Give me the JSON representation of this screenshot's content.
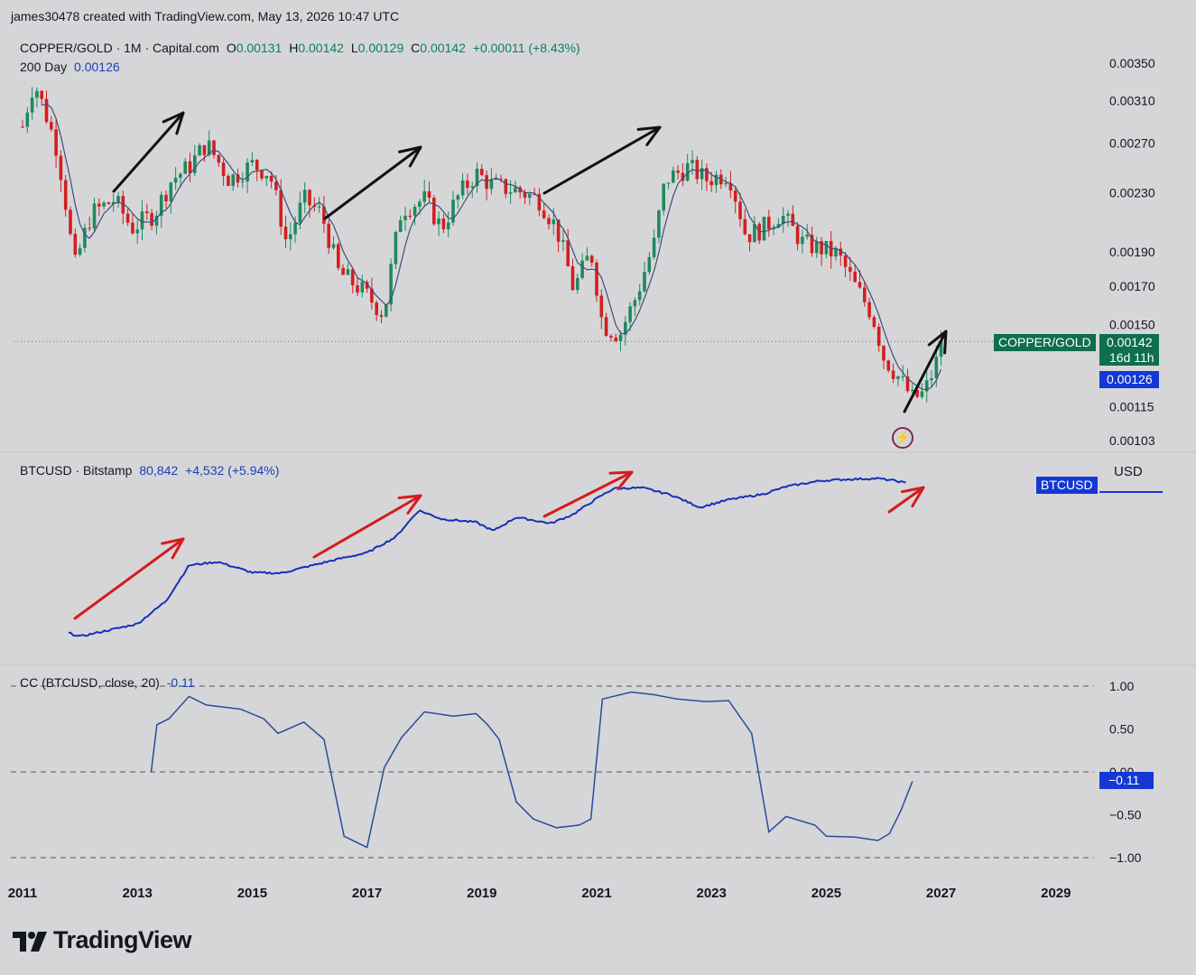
{
  "header": {
    "credit": "james30478 created with TradingView.com, May 13, 2026 10:47 UTC"
  },
  "panel1": {
    "symbol": "COPPER/GOLD · 1M · Capital.com",
    "o_label": "O",
    "o": "0.00131",
    "h_label": "H",
    "h": "0.00142",
    "l_label": "L",
    "l": "0.00129",
    "c_label": "C",
    "c": "0.00142",
    "change": "+0.00011 (+8.43%)",
    "ma_label": "200 Day",
    "ma_value": "0.00126",
    "price_tag_name": "COPPER/GOLD",
    "price_tag_value": "0.00142",
    "countdown": "16d 11h",
    "ma_tag_value": "0.00126"
  },
  "panel2": {
    "symbol": "BTCUSD · Bitstamp",
    "price": "80,842",
    "change": "+4,532 (+5.94%)",
    "tag": "BTCUSD",
    "currency": "USD"
  },
  "panel3": {
    "title": "CC (BTCUSD, close, 20)",
    "value": "-0.11",
    "tag": "−0.11"
  },
  "colors": {
    "up": "#1e8a5e",
    "down": "#d21f1f",
    "ma": "#3f4d7a",
    "btc": "#1432b8",
    "cc": "#2a4c9a",
    "red_arrow": "#d41c1c",
    "black_arrow": "#111111",
    "price_tag": "#0e6e4e",
    "blue_tag": "#1438d4"
  },
  "logo": {
    "text": "TradingView"
  },
  "chart_data": [
    {
      "type": "candlestick",
      "title": "COPPER/GOLD · 1M · Capital.com",
      "y_ticks": [
        "0.00350",
        "0.00310",
        "0.00270",
        "0.00230",
        "0.00190",
        "0.00170",
        "0.00150",
        "0.00115",
        "0.00103"
      ],
      "y_scale": "log",
      "x_ticks": [
        "2011",
        "2013",
        "2015",
        "2017",
        "2019",
        "2021",
        "2023",
        "2025",
        "2027",
        "2029"
      ],
      "last_close": 0.00142,
      "moving_average": {
        "name": "200 Day",
        "last": 0.00126
      },
      "close_anchors": [
        [
          2011.0,
          0.00285
        ],
        [
          2011.2,
          0.0033
        ],
        [
          2011.6,
          0.00265
        ],
        [
          2011.9,
          0.0018
        ],
        [
          2012.2,
          0.00215
        ],
        [
          2012.6,
          0.00225
        ],
        [
          2012.9,
          0.00205
        ],
        [
          2013.3,
          0.00215
        ],
        [
          2013.6,
          0.0024
        ],
        [
          2013.9,
          0.0025
        ],
        [
          2014.2,
          0.0027
        ],
        [
          2014.6,
          0.0024
        ],
        [
          2015.0,
          0.00252
        ],
        [
          2015.3,
          0.00245
        ],
        [
          2015.6,
          0.00195
        ],
        [
          2015.9,
          0.00225
        ],
        [
          2016.2,
          0.00215
        ],
        [
          2016.5,
          0.00178
        ],
        [
          2016.9,
          0.00168
        ],
        [
          2017.3,
          0.00155
        ],
        [
          2017.6,
          0.00218
        ],
        [
          2018.0,
          0.00225
        ],
        [
          2018.3,
          0.00205
        ],
        [
          2018.6,
          0.00228
        ],
        [
          2018.9,
          0.00245
        ],
        [
          2019.2,
          0.00235
        ],
        [
          2019.6,
          0.00232
        ],
        [
          2020.0,
          0.00225
        ],
        [
          2020.3,
          0.00205
        ],
        [
          2020.6,
          0.00168
        ],
        [
          2020.9,
          0.0019
        ],
        [
          2021.1,
          0.0015
        ],
        [
          2021.4,
          0.00145
        ],
        [
          2021.7,
          0.00165
        ],
        [
          2022.0,
          0.00195
        ],
        [
          2022.2,
          0.0024
        ],
        [
          2022.6,
          0.0025
        ],
        [
          2022.9,
          0.0024
        ],
        [
          2023.3,
          0.00245
        ],
        [
          2023.6,
          0.002
        ],
        [
          2023.9,
          0.00205
        ],
        [
          2024.2,
          0.00215
        ],
        [
          2024.6,
          0.00195
        ],
        [
          2024.9,
          0.00192
        ],
        [
          2025.2,
          0.00188
        ],
        [
          2025.5,
          0.0017
        ],
        [
          2025.8,
          0.00155
        ],
        [
          2026.0,
          0.00135
        ],
        [
          2026.3,
          0.00125
        ],
        [
          2026.5,
          0.00118
        ],
        [
          2026.7,
          0.0012
        ],
        [
          2026.9,
          0.00131
        ],
        [
          2027.0,
          0.00142
        ]
      ]
    },
    {
      "type": "line",
      "title": "BTCUSD · Bitstamp",
      "y_scale": "log",
      "unit": "USD",
      "last_value": 80842,
      "points": [
        [
          2011.8,
          5
        ],
        [
          2012.0,
          4
        ],
        [
          2012.5,
          6
        ],
        [
          2013.0,
          9
        ],
        [
          2013.5,
          40
        ],
        [
          2013.9,
          400
        ],
        [
          2014.4,
          500
        ],
        [
          2015.0,
          250
        ],
        [
          2015.5,
          240
        ],
        [
          2016.0,
          380
        ],
        [
          2016.5,
          600
        ],
        [
          2017.0,
          900
        ],
        [
          2017.5,
          2500
        ],
        [
          2017.9,
          14000
        ],
        [
          2018.3,
          8000
        ],
        [
          2018.9,
          6500
        ],
        [
          2019.2,
          3700
        ],
        [
          2019.6,
          9000
        ],
        [
          2020.2,
          6000
        ],
        [
          2020.6,
          11000
        ],
        [
          2021.0,
          30000
        ],
        [
          2021.3,
          58000
        ],
        [
          2021.8,
          60000
        ],
        [
          2022.3,
          38000
        ],
        [
          2022.8,
          17000
        ],
        [
          2023.3,
          28000
        ],
        [
          2023.9,
          40000
        ],
        [
          2024.3,
          65000
        ],
        [
          2024.9,
          95000
        ],
        [
          2025.4,
          105000
        ],
        [
          2025.9,
          110000
        ],
        [
          2026.2,
          95000
        ],
        [
          2026.4,
          80842
        ]
      ]
    },
    {
      "type": "line",
      "title": "CC (BTCUSD, close, 20)",
      "y_ticks": [
        "1.00",
        "0.50",
        "0.00",
        "−0.50",
        "−1.00"
      ],
      "ylim": [
        -1.0,
        1.0
      ],
      "last_value": -0.11,
      "points": [
        [
          2013.24,
          0.0
        ],
        [
          2013.34,
          0.55
        ],
        [
          2013.55,
          0.62
        ],
        [
          2013.9,
          0.88
        ],
        [
          2014.2,
          0.78
        ],
        [
          2014.8,
          0.73
        ],
        [
          2015.2,
          0.62
        ],
        [
          2015.45,
          0.45
        ],
        [
          2015.9,
          0.58
        ],
        [
          2016.25,
          0.38
        ],
        [
          2016.6,
          -0.75
        ],
        [
          2017.0,
          -0.88
        ],
        [
          2017.3,
          0.05
        ],
        [
          2017.6,
          0.4
        ],
        [
          2018.0,
          0.7
        ],
        [
          2018.5,
          0.65
        ],
        [
          2018.9,
          0.68
        ],
        [
          2019.1,
          0.55
        ],
        [
          2019.3,
          0.38
        ],
        [
          2019.6,
          -0.35
        ],
        [
          2019.9,
          -0.55
        ],
        [
          2020.3,
          -0.65
        ],
        [
          2020.7,
          -0.62
        ],
        [
          2020.9,
          -0.55
        ],
        [
          2021.1,
          0.85
        ],
        [
          2021.6,
          0.93
        ],
        [
          2022.0,
          0.9
        ],
        [
          2022.4,
          0.85
        ],
        [
          2022.9,
          0.82
        ],
        [
          2023.3,
          0.83
        ],
        [
          2023.7,
          0.45
        ],
        [
          2024.0,
          -0.7
        ],
        [
          2024.3,
          -0.52
        ],
        [
          2024.8,
          -0.62
        ],
        [
          2025.0,
          -0.75
        ],
        [
          2025.5,
          -0.76
        ],
        [
          2025.9,
          -0.8
        ],
        [
          2026.1,
          -0.72
        ],
        [
          2026.3,
          -0.45
        ],
        [
          2026.5,
          -0.11
        ]
      ]
    }
  ]
}
